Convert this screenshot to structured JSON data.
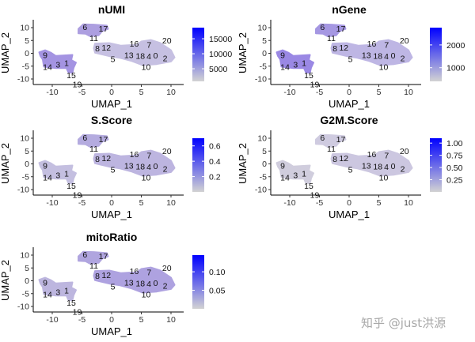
{
  "chart_data": [
    {
      "type": "scatter",
      "title": "nUMI",
      "xlabel": "UMAP_1",
      "ylabel": "UMAP_2",
      "xlim": [
        -13,
        12.5
      ],
      "ylim": [
        -12,
        13
      ],
      "xticks": [
        -10,
        -5,
        0,
        5,
        10
      ],
      "yticks": [
        10,
        5,
        0,
        -5,
        -10
      ],
      "colorbar": {
        "low": "#d3d3d3",
        "high": "#0000ff",
        "range": [
          800,
          18700
        ],
        "ticks": [
          15000,
          10000,
          5000
        ]
      },
      "island_colors": {
        "top": "#ad9fe0",
        "left": "#a494e2",
        "right": "#c6c0e2"
      }
    },
    {
      "type": "scatter",
      "title": "nGene",
      "xlabel": "UMAP_1",
      "ylabel": "UMAP_2",
      "xlim": [
        -13,
        12.5
      ],
      "ylim": [
        -12,
        13
      ],
      "xticks": [
        -10,
        -5,
        0,
        5,
        10
      ],
      "yticks": [
        10,
        5,
        0,
        -5,
        -10
      ],
      "colorbar": {
        "low": "#d3d3d3",
        "high": "#0000ff",
        "range": [
          400,
          2760
        ],
        "ticks": [
          2000,
          1000
        ]
      },
      "island_colors": {
        "top": "#a597e2",
        "left": "#9a88e4",
        "right": "#beb6e4"
      }
    },
    {
      "type": "scatter",
      "title": "S.Score",
      "xlabel": "UMAP_1",
      "ylabel": "UMAP_2",
      "xlim": [
        -13,
        12.5
      ],
      "ylim": [
        -12,
        13
      ],
      "xticks": [
        -10,
        -5,
        0,
        5,
        10
      ],
      "yticks": [
        10,
        5,
        0,
        -5,
        -10
      ],
      "colorbar": {
        "low": "#d3d3d3",
        "high": "#0000ff",
        "range": [
          0.0,
          0.7
        ],
        "ticks": [
          0.6,
          0.4,
          0.2
        ]
      },
      "island_colors": {
        "top": "#b4abdf",
        "left": "#c4bfe0",
        "right": "#bdb5e0"
      }
    },
    {
      "type": "scatter",
      "title": "G2M.Score",
      "xlabel": "UMAP_1",
      "ylabel": "UMAP_2",
      "xlim": [
        -13,
        12.5
      ],
      "ylim": [
        -12,
        13
      ],
      "xticks": [
        -10,
        -5,
        0,
        5,
        10
      ],
      "yticks": [
        10,
        5,
        0,
        -5,
        -10
      ],
      "colorbar": {
        "low": "#d3d3d3",
        "high": "#0000ff",
        "range": [
          0.0,
          1.1
        ],
        "ticks": [
          1.0,
          0.75,
          0.5,
          0.25
        ]
      },
      "island_colors": {
        "top": "#cfcbe0",
        "left": "#d0cddd",
        "right": "#ccc7e0"
      }
    },
    {
      "type": "scatter",
      "title": "mitoRatio",
      "xlabel": "UMAP_1",
      "ylabel": "UMAP_2",
      "xlim": [
        -13,
        12.5
      ],
      "ylim": [
        -12,
        13
      ],
      "xticks": [
        -10,
        -5,
        0,
        5,
        10
      ],
      "yticks": [
        10,
        5,
        0,
        -5,
        -10
      ],
      "colorbar": {
        "low": "#d3d3d3",
        "high": "#0000ff",
        "range": [
          0.0,
          0.145
        ],
        "ticks": [
          0.1,
          0.05
        ]
      },
      "island_colors": {
        "top": "#b0a5df",
        "left": "#bdb6df",
        "right": "#aea2e0"
      }
    }
  ],
  "cluster_labels": [
    {
      "label": "6",
      "x": -4.5,
      "y": 10.2
    },
    {
      "label": "17",
      "x": -1.4,
      "y": 9.6
    },
    {
      "label": "11",
      "x": -3.0,
      "y": 7.4
    },
    {
      "label": "8",
      "x": -2.4,
      "y": 1.9
    },
    {
      "label": "12",
      "x": -0.9,
      "y": 2.1
    },
    {
      "label": "5",
      "x": 0.2,
      "y": -0.7
    },
    {
      "label": "13",
      "x": 2.9,
      "y": -0.7
    },
    {
      "label": "16",
      "x": 3.8,
      "y": 2.1
    },
    {
      "label": "18",
      "x": 4.3,
      "y": 0.5
    },
    {
      "label": "7",
      "x": 6.3,
      "y": 3.2
    },
    {
      "label": "20",
      "x": 9.3,
      "y": 5.0
    },
    {
      "label": "4",
      "x": 5.2,
      "y": -1.2
    },
    {
      "label": "0",
      "x": 7.4,
      "y": -0.9
    },
    {
      "label": "2",
      "x": 9.0,
      "y": -2.0
    },
    {
      "label": "10",
      "x": 5.8,
      "y": -3.8
    },
    {
      "label": "9",
      "x": -11.2,
      "y": -0.7
    },
    {
      "label": "14",
      "x": -10.8,
      "y": -3.8
    },
    {
      "label": "3",
      "x": -9.7,
      "y": -4.4
    },
    {
      "label": "1",
      "x": -7.6,
      "y": -3.8
    },
    {
      "label": "15",
      "x": -6.8,
      "y": -7.1
    },
    {
      "label": "19",
      "x": -5.8,
      "y": -10.6
    }
  ],
  "watermark": "知乎 @just洪源"
}
